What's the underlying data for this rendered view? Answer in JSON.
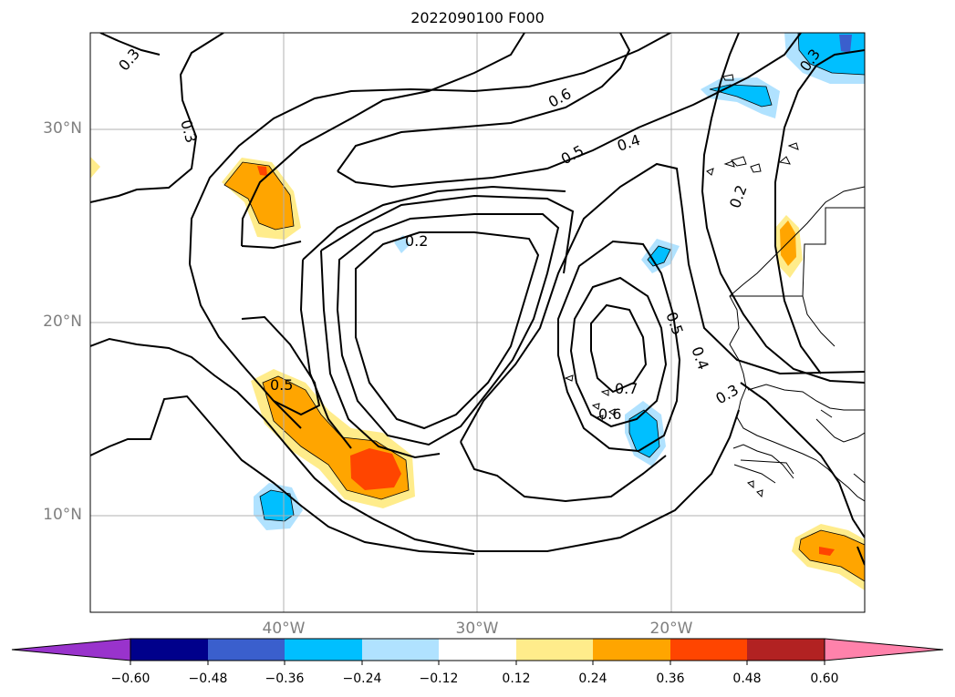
{
  "title": "2022090100 F000",
  "map": {
    "lat_labels": [
      {
        "label": "30°N",
        "lat": 30
      },
      {
        "label": "20°N",
        "lat": 20
      },
      {
        "label": "10°N",
        "lat": 10
      }
    ],
    "lon_labels": [
      {
        "label": "40°W",
        "lon": -40
      },
      {
        "label": "30°W",
        "lon": -30
      },
      {
        "label": "20°W",
        "lon": -20
      }
    ],
    "extent": {
      "lon_min": -50,
      "lon_max": -10,
      "lat_min": 5,
      "lat_max": 35
    },
    "gridlines": true,
    "contour_labels": [
      "0.3",
      "0.3",
      "0.6",
      "0.5",
      "0.4",
      "0.2",
      "0.2",
      "0.5",
      "0.4",
      "0.5",
      "0.7",
      "0.6",
      "0.3",
      "0.3"
    ]
  },
  "colorbar": {
    "ticks": [
      "−0.60",
      "−0.48",
      "−0.36",
      "−0.24",
      "−0.12",
      "0.12",
      "0.24",
      "0.36",
      "0.48",
      "0.60"
    ],
    "colors": [
      "#9933cc",
      "#00008b",
      "#3a5fcd",
      "#00bfff",
      "#b0e2ff",
      "#ffffff",
      "#ffec8b",
      "#ffa500",
      "#ff4500",
      "#b22222",
      "#ff82ab"
    ]
  }
}
